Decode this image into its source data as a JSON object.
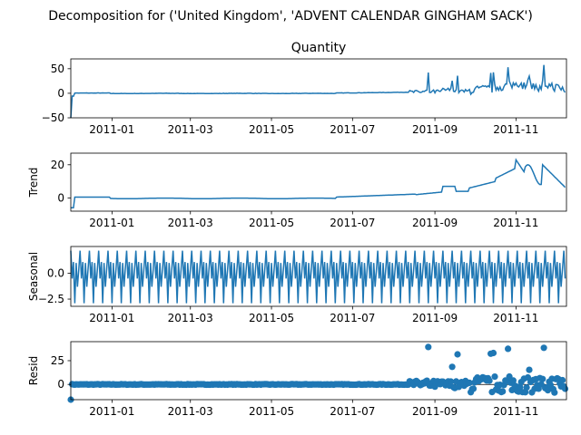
{
  "figure": {
    "title": "Decomposition for ('United Kingdom', 'ADVENT CALENDAR GINGHAM SACK')"
  },
  "colors": {
    "series": "#1f77b4",
    "axes": "#000000",
    "background": "#ffffff"
  },
  "chart_data": [
    {
      "type": "line",
      "title": "Quantity",
      "ylabel": "",
      "xlim": [
        "2010-12-01",
        "2011-12-09"
      ],
      "ylim": [
        -50,
        70
      ],
      "yticks": [
        "50",
        "0",
        "−50"
      ],
      "ytick_values": [
        50,
        0,
        -50
      ],
      "xticks": [
        "2011-01",
        "2011-03",
        "2011-05",
        "2011-07",
        "2011-09",
        "2011-11"
      ],
      "grid": false
    },
    {
      "type": "line",
      "title": "",
      "ylabel": "Trend",
      "xlim": [
        "2010-12-01",
        "2011-12-09"
      ],
      "ylim": [
        -8,
        27
      ],
      "yticks": [
        "20",
        "0"
      ],
      "ytick_values": [
        20,
        0
      ],
      "xticks": [
        "2011-01",
        "2011-03",
        "2011-05",
        "2011-07",
        "2011-09",
        "2011-11"
      ],
      "grid": false
    },
    {
      "type": "line",
      "title": "",
      "ylabel": "Seasonal",
      "xlim": [
        "2010-12-01",
        "2011-12-09"
      ],
      "ylim": [
        -3.2,
        2.6
      ],
      "yticks": [
        "0.0",
        "−2.5"
      ],
      "ytick_values": [
        0,
        -2.5
      ],
      "xticks": [
        "2011-01",
        "2011-03",
        "2011-05",
        "2011-07",
        "2011-09",
        "2011-11"
      ],
      "period_days": 7,
      "weekly_pattern": [
        2.2,
        -0.5,
        1.1,
        -2.9,
        1.0,
        -1.3,
        0.4
      ],
      "grid": false
    },
    {
      "type": "scatter",
      "title": "",
      "ylabel": "Resid",
      "xlim": [
        "2010-12-01",
        "2011-12-09"
      ],
      "ylim": [
        -16,
        45
      ],
      "yticks": [
        "25",
        "0"
      ],
      "ytick_values": [
        25,
        0
      ],
      "xticks": [
        "2011-01",
        "2011-03",
        "2011-05",
        "2011-07",
        "2011-09",
        "2011-11"
      ],
      "baseline": 0,
      "grid": false
    }
  ]
}
